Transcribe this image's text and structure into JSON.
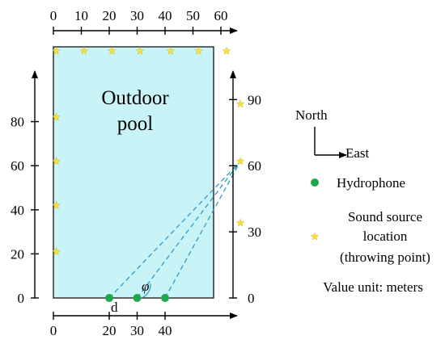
{
  "pool": {
    "label_line1": "Outdoor",
    "label_line2": "pool",
    "fill_color": "#c8f4f7",
    "border_color": "#222222"
  },
  "axes": {
    "top_x": {
      "ticks": [
        "0",
        "10",
        "20",
        "30",
        "40",
        "50",
        "60"
      ],
      "values": [
        0,
        10,
        20,
        30,
        40,
        50,
        60
      ]
    },
    "bottom_x": {
      "ticks": [
        "0",
        "20",
        "30",
        "40"
      ],
      "values": [
        0,
        20,
        30,
        40
      ]
    },
    "left_y": {
      "ticks": [
        "0",
        "20",
        "40",
        "60",
        "80"
      ],
      "values": [
        0,
        20,
        40,
        60,
        80
      ]
    },
    "right_y": {
      "ticks": [
        "0",
        "30",
        "60",
        "90"
      ],
      "values": [
        0,
        30,
        60,
        90
      ]
    }
  },
  "hydrophones": [
    {
      "x": 20,
      "y": 0
    },
    {
      "x": 30,
      "y": 0
    },
    {
      "x": 40,
      "y": 0
    }
  ],
  "hydrophone_color": "#1ea84a",
  "sound_sources": [
    {
      "x": 1,
      "y": 112
    },
    {
      "x": 11,
      "y": 112
    },
    {
      "x": 21,
      "y": 112
    },
    {
      "x": 31,
      "y": 112
    },
    {
      "x": 42,
      "y": 112
    },
    {
      "x": 52,
      "y": 112
    },
    {
      "x": 62,
      "y": 112
    },
    {
      "x": 1,
      "y": 82
    },
    {
      "x": 1,
      "y": 62
    },
    {
      "x": 1,
      "y": 42
    },
    {
      "x": 1,
      "y": 21
    },
    {
      "x": 67,
      "y": 88
    },
    {
      "x": 67,
      "y": 62
    },
    {
      "x": 67,
      "y": 34
    }
  ],
  "source_color": "#f5e13a",
  "throw_point": {
    "x": 67,
    "y": 62
  },
  "dashed_color": "#3399cc",
  "labels": {
    "d": "d",
    "phi": "φ"
  },
  "compass": {
    "north": "North",
    "east": "East"
  },
  "legend": {
    "hydrophone": "Hydrophone",
    "source_line1": "Sound source",
    "source_line2": "location",
    "source_line3": "(throwing point)",
    "unit_note": "Value unit: meters"
  }
}
